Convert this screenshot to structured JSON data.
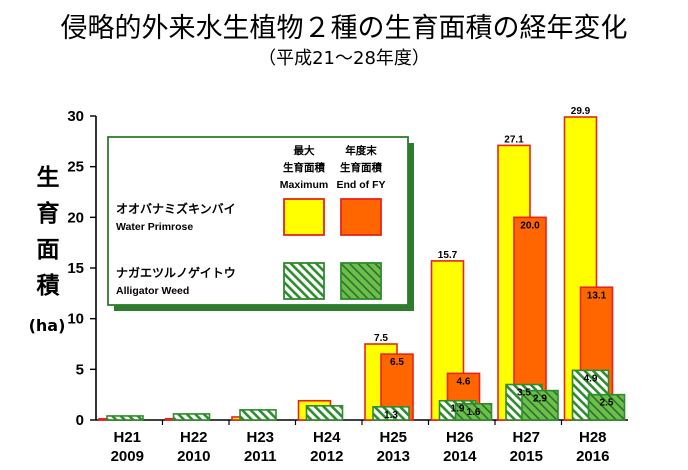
{
  "title": "侵略的外来水生植物２種の生育面積の経年変化",
  "subtitle": "（平成21～28年度）",
  "ylabel_chars": [
    "生",
    "育",
    "面",
    "積"
  ],
  "yunit": "(ha)",
  "chart_data": {
    "type": "bar",
    "title": "侵略的外来水生植物２種の生育面積の経年変化",
    "subtitle": "（平成21～28年度）",
    "ylabel": "生育面積 (ha)",
    "xlabel": "",
    "ylim": [
      0,
      30
    ],
    "yticks": [
      0,
      5,
      10,
      15,
      20,
      25,
      30
    ],
    "categories": [
      {
        "era": "H21",
        "year": "2009"
      },
      {
        "era": "H22",
        "year": "2010"
      },
      {
        "era": "H23",
        "year": "2011"
      },
      {
        "era": "H24",
        "year": "2012"
      },
      {
        "era": "H25",
        "year": "2013"
      },
      {
        "era": "H26",
        "year": "2014"
      },
      {
        "era": "H27",
        "year": "2015"
      },
      {
        "era": "H28",
        "year": "2016"
      }
    ],
    "series": [
      {
        "name": "オオバナミズキンバイ Water Primrose 最大生育面積 Maximum",
        "species": "wp",
        "kind": "max",
        "color": "#ffff00",
        "stroke": "#e8231e",
        "values": [
          0.1,
          0.1,
          0.3,
          1.9,
          7.5,
          15.7,
          27.1,
          29.9
        ],
        "labels": [
          null,
          null,
          null,
          null,
          "7.5",
          "15.7",
          "27.1",
          "29.9"
        ]
      },
      {
        "name": "オオバナミズキンバイ Water Primrose 年度末生育面積 End of FY",
        "species": "wp",
        "kind": "end",
        "color": "#ff6600",
        "stroke": "#e8231e",
        "values": [
          null,
          null,
          null,
          null,
          6.5,
          4.6,
          20.0,
          13.1
        ],
        "labels": [
          null,
          null,
          null,
          null,
          "6.5",
          "4.6",
          "20.0",
          "13.1"
        ]
      },
      {
        "name": "ナガエツルノゲイトウ Alligator Weed 最大生育面積 Maximum",
        "species": "aw",
        "kind": "max",
        "color": "#ffffff",
        "stroke": "#2e8b2e",
        "values": [
          0.4,
          0.6,
          1.0,
          1.4,
          1.3,
          1.9,
          3.5,
          4.9
        ],
        "labels": [
          null,
          null,
          null,
          null,
          "1.3",
          "1.9",
          "3.5",
          "4.9"
        ]
      },
      {
        "name": "ナガエツルノゲイトウ Alligator Weed 年度末生育面積 End of FY",
        "species": "aw",
        "kind": "end",
        "color": "#6cc04a",
        "stroke": "#2e8b2e",
        "values": [
          null,
          null,
          null,
          null,
          null,
          1.6,
          2.9,
          2.5
        ],
        "labels": [
          null,
          null,
          null,
          null,
          null,
          "1.6",
          "2.9",
          "2.5"
        ]
      }
    ],
    "legend": {
      "placement": "top-left",
      "col_max": [
        "最大",
        "生育面積",
        "Maximum"
      ],
      "col_end": [
        "年度末",
        "生育面積",
        "End of FY"
      ],
      "rows": [
        {
          "jp": "オオバナミズキンバイ",
          "en": "Water Primrose",
          "species": "wp"
        },
        {
          "jp": "ナガエツルノゲイトウ",
          "en": "Alligator Weed",
          "species": "aw"
        }
      ]
    },
    "colors": {
      "wp_max": "#ffff00",
      "wp_end": "#ff6600",
      "wp_border": "#e8231e",
      "aw_max_hatch": "#2e8b2e",
      "aw_end_fill": "#6cc04a",
      "aw_border": "#2e8b2e",
      "legend_bg": "#ffffff",
      "legend_border": "#2e7d2e",
      "legend_shadow": "#2e7d2e"
    }
  }
}
